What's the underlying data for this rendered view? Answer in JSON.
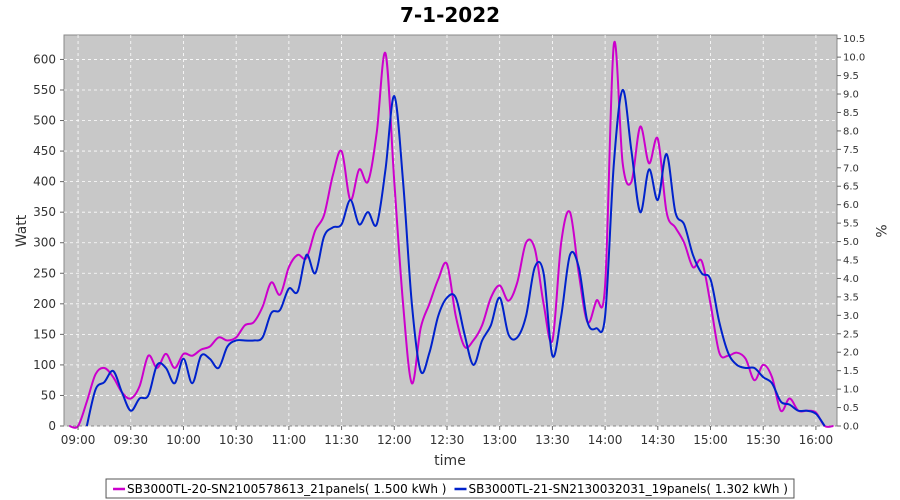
{
  "chart_data": {
    "type": "line",
    "title": "7-1-2022",
    "xlabel": "time",
    "ylabel": "Watt",
    "y2label": "%",
    "xlim": [
      "08:52",
      "16:12"
    ],
    "ylim": [
      0,
      640
    ],
    "y2lim": [
      0,
      10.6
    ],
    "grid": true,
    "background": "#c8c8c8",
    "x_ticks": [
      "09:00",
      "09:30",
      "10:00",
      "10:30",
      "11:00",
      "11:30",
      "12:00",
      "12:30",
      "13:00",
      "13:30",
      "14:00",
      "14:30",
      "15:00",
      "15:30",
      "16:00"
    ],
    "y_ticks": [
      0,
      50,
      100,
      150,
      200,
      250,
      300,
      350,
      400,
      450,
      500,
      550,
      600
    ],
    "y2_ticks": [
      "0.0",
      "0.5",
      "1.0",
      "1.5",
      "2.0",
      "2.5",
      "3.0",
      "3.5",
      "4.0",
      "4.5",
      "5.0",
      "5.5",
      "6.0",
      "6.5",
      "7.0",
      "7.5",
      "8.0",
      "8.5",
      "9.0",
      "9.5",
      "10.0",
      "10.5"
    ],
    "legend_position": "bottom",
    "series": [
      {
        "name": "SB3000TL-20-SN2100578613_21panels( 1.500 kWh )",
        "color": "#cc00cc",
        "points": [
          [
            "08:55",
            0
          ],
          [
            "09:00",
            0
          ],
          [
            "09:05",
            40
          ],
          [
            "09:10",
            85
          ],
          [
            "09:15",
            95
          ],
          [
            "09:20",
            80
          ],
          [
            "09:25",
            55
          ],
          [
            "09:30",
            45
          ],
          [
            "09:35",
            65
          ],
          [
            "09:40",
            115
          ],
          [
            "09:45",
            95
          ],
          [
            "09:50",
            118
          ],
          [
            "09:55",
            95
          ],
          [
            "10:00",
            118
          ],
          [
            "10:05",
            115
          ],
          [
            "10:10",
            125
          ],
          [
            "10:15",
            130
          ],
          [
            "10:20",
            145
          ],
          [
            "10:25",
            140
          ],
          [
            "10:30",
            145
          ],
          [
            "10:35",
            165
          ],
          [
            "10:40",
            170
          ],
          [
            "10:45",
            195
          ],
          [
            "10:50",
            235
          ],
          [
            "10:55",
            215
          ],
          [
            "11:00",
            260
          ],
          [
            "11:05",
            280
          ],
          [
            "11:10",
            275
          ],
          [
            "11:15",
            320
          ],
          [
            "11:20",
            345
          ],
          [
            "11:25",
            410
          ],
          [
            "11:30",
            450
          ],
          [
            "11:35",
            370
          ],
          [
            "11:40",
            420
          ],
          [
            "11:45",
            400
          ],
          [
            "11:50",
            480
          ],
          [
            "11:55",
            610
          ],
          [
            "12:00",
            400
          ],
          [
            "12:05",
            200
          ],
          [
            "12:10",
            70
          ],
          [
            "12:15",
            160
          ],
          [
            "12:20",
            200
          ],
          [
            "12:25",
            240
          ],
          [
            "12:30",
            265
          ],
          [
            "12:35",
            180
          ],
          [
            "12:40",
            130
          ],
          [
            "12:45",
            140
          ],
          [
            "12:50",
            165
          ],
          [
            "12:55",
            210
          ],
          [
            "13:00",
            230
          ],
          [
            "13:05",
            205
          ],
          [
            "13:10",
            235
          ],
          [
            "13:15",
            300
          ],
          [
            "13:20",
            290
          ],
          [
            "13:25",
            200
          ],
          [
            "13:30",
            140
          ],
          [
            "13:35",
            300
          ],
          [
            "13:40",
            350
          ],
          [
            "13:45",
            250
          ],
          [
            "13:50",
            170
          ],
          [
            "13:55",
            205
          ],
          [
            "14:00",
            230
          ],
          [
            "14:05",
            625
          ],
          [
            "14:10",
            430
          ],
          [
            "14:15",
            400
          ],
          [
            "14:20",
            490
          ],
          [
            "14:25",
            430
          ],
          [
            "14:30",
            470
          ],
          [
            "14:35",
            350
          ],
          [
            "14:40",
            325
          ],
          [
            "14:45",
            300
          ],
          [
            "14:50",
            260
          ],
          [
            "14:55",
            270
          ],
          [
            "15:00",
            200
          ],
          [
            "15:05",
            120
          ],
          [
            "15:10",
            115
          ],
          [
            "15:15",
            120
          ],
          [
            "15:20",
            110
          ],
          [
            "15:25",
            75
          ],
          [
            "15:30",
            100
          ],
          [
            "15:35",
            80
          ],
          [
            "15:40",
            25
          ],
          [
            "15:45",
            45
          ],
          [
            "15:50",
            25
          ],
          [
            "15:55",
            25
          ],
          [
            "16:00",
            22
          ],
          [
            "16:05",
            0
          ],
          [
            "16:10",
            0
          ]
        ]
      },
      {
        "name": "SB3000TL-21-SN2130032031_19panels( 1.302 kWh )",
        "color": "#0022cc",
        "points": [
          [
            "09:05",
            0
          ],
          [
            "09:10",
            60
          ],
          [
            "09:15",
            72
          ],
          [
            "09:20",
            90
          ],
          [
            "09:25",
            55
          ],
          [
            "09:30",
            25
          ],
          [
            "09:35",
            45
          ],
          [
            "09:40",
            50
          ],
          [
            "09:45",
            100
          ],
          [
            "09:50",
            95
          ],
          [
            "09:55",
            70
          ],
          [
            "10:00",
            110
          ],
          [
            "10:05",
            70
          ],
          [
            "10:10",
            115
          ],
          [
            "10:15",
            110
          ],
          [
            "10:20",
            95
          ],
          [
            "10:25",
            130
          ],
          [
            "10:30",
            140
          ],
          [
            "10:35",
            140
          ],
          [
            "10:40",
            140
          ],
          [
            "10:45",
            145
          ],
          [
            "10:50",
            185
          ],
          [
            "10:55",
            190
          ],
          [
            "11:00",
            225
          ],
          [
            "11:05",
            220
          ],
          [
            "11:10",
            280
          ],
          [
            "11:15",
            250
          ],
          [
            "11:20",
            310
          ],
          [
            "11:25",
            325
          ],
          [
            "11:30",
            330
          ],
          [
            "11:35",
            370
          ],
          [
            "11:40",
            330
          ],
          [
            "11:45",
            350
          ],
          [
            "11:50",
            330
          ],
          [
            "11:55",
            420
          ],
          [
            "12:00",
            540
          ],
          [
            "12:05",
            400
          ],
          [
            "12:10",
            200
          ],
          [
            "12:15",
            90
          ],
          [
            "12:20",
            120
          ],
          [
            "12:25",
            180
          ],
          [
            "12:30",
            210
          ],
          [
            "12:35",
            210
          ],
          [
            "12:40",
            150
          ],
          [
            "12:45",
            100
          ],
          [
            "12:50",
            140
          ],
          [
            "12:55",
            165
          ],
          [
            "13:00",
            210
          ],
          [
            "13:05",
            150
          ],
          [
            "13:10",
            145
          ],
          [
            "13:15",
            180
          ],
          [
            "13:20",
            260
          ],
          [
            "13:25",
            250
          ],
          [
            "13:30",
            115
          ],
          [
            "13:35",
            180
          ],
          [
            "13:40",
            280
          ],
          [
            "13:45",
            260
          ],
          [
            "13:50",
            170
          ],
          [
            "13:55",
            160
          ],
          [
            "14:00",
            180
          ],
          [
            "14:05",
            430
          ],
          [
            "14:10",
            550
          ],
          [
            "14:15",
            450
          ],
          [
            "14:20",
            350
          ],
          [
            "14:25",
            420
          ],
          [
            "14:30",
            370
          ],
          [
            "14:35",
            445
          ],
          [
            "14:40",
            350
          ],
          [
            "14:45",
            330
          ],
          [
            "14:50",
            280
          ],
          [
            "14:55",
            250
          ],
          [
            "15:00",
            240
          ],
          [
            "15:05",
            170
          ],
          [
            "15:10",
            120
          ],
          [
            "15:15",
            100
          ],
          [
            "15:20",
            95
          ],
          [
            "15:25",
            95
          ],
          [
            "15:30",
            80
          ],
          [
            "15:35",
            70
          ],
          [
            "15:40",
            40
          ],
          [
            "15:45",
            35
          ],
          [
            "15:50",
            25
          ],
          [
            "15:55",
            25
          ],
          [
            "16:00",
            20
          ],
          [
            "16:05",
            0
          ]
        ]
      }
    ]
  }
}
